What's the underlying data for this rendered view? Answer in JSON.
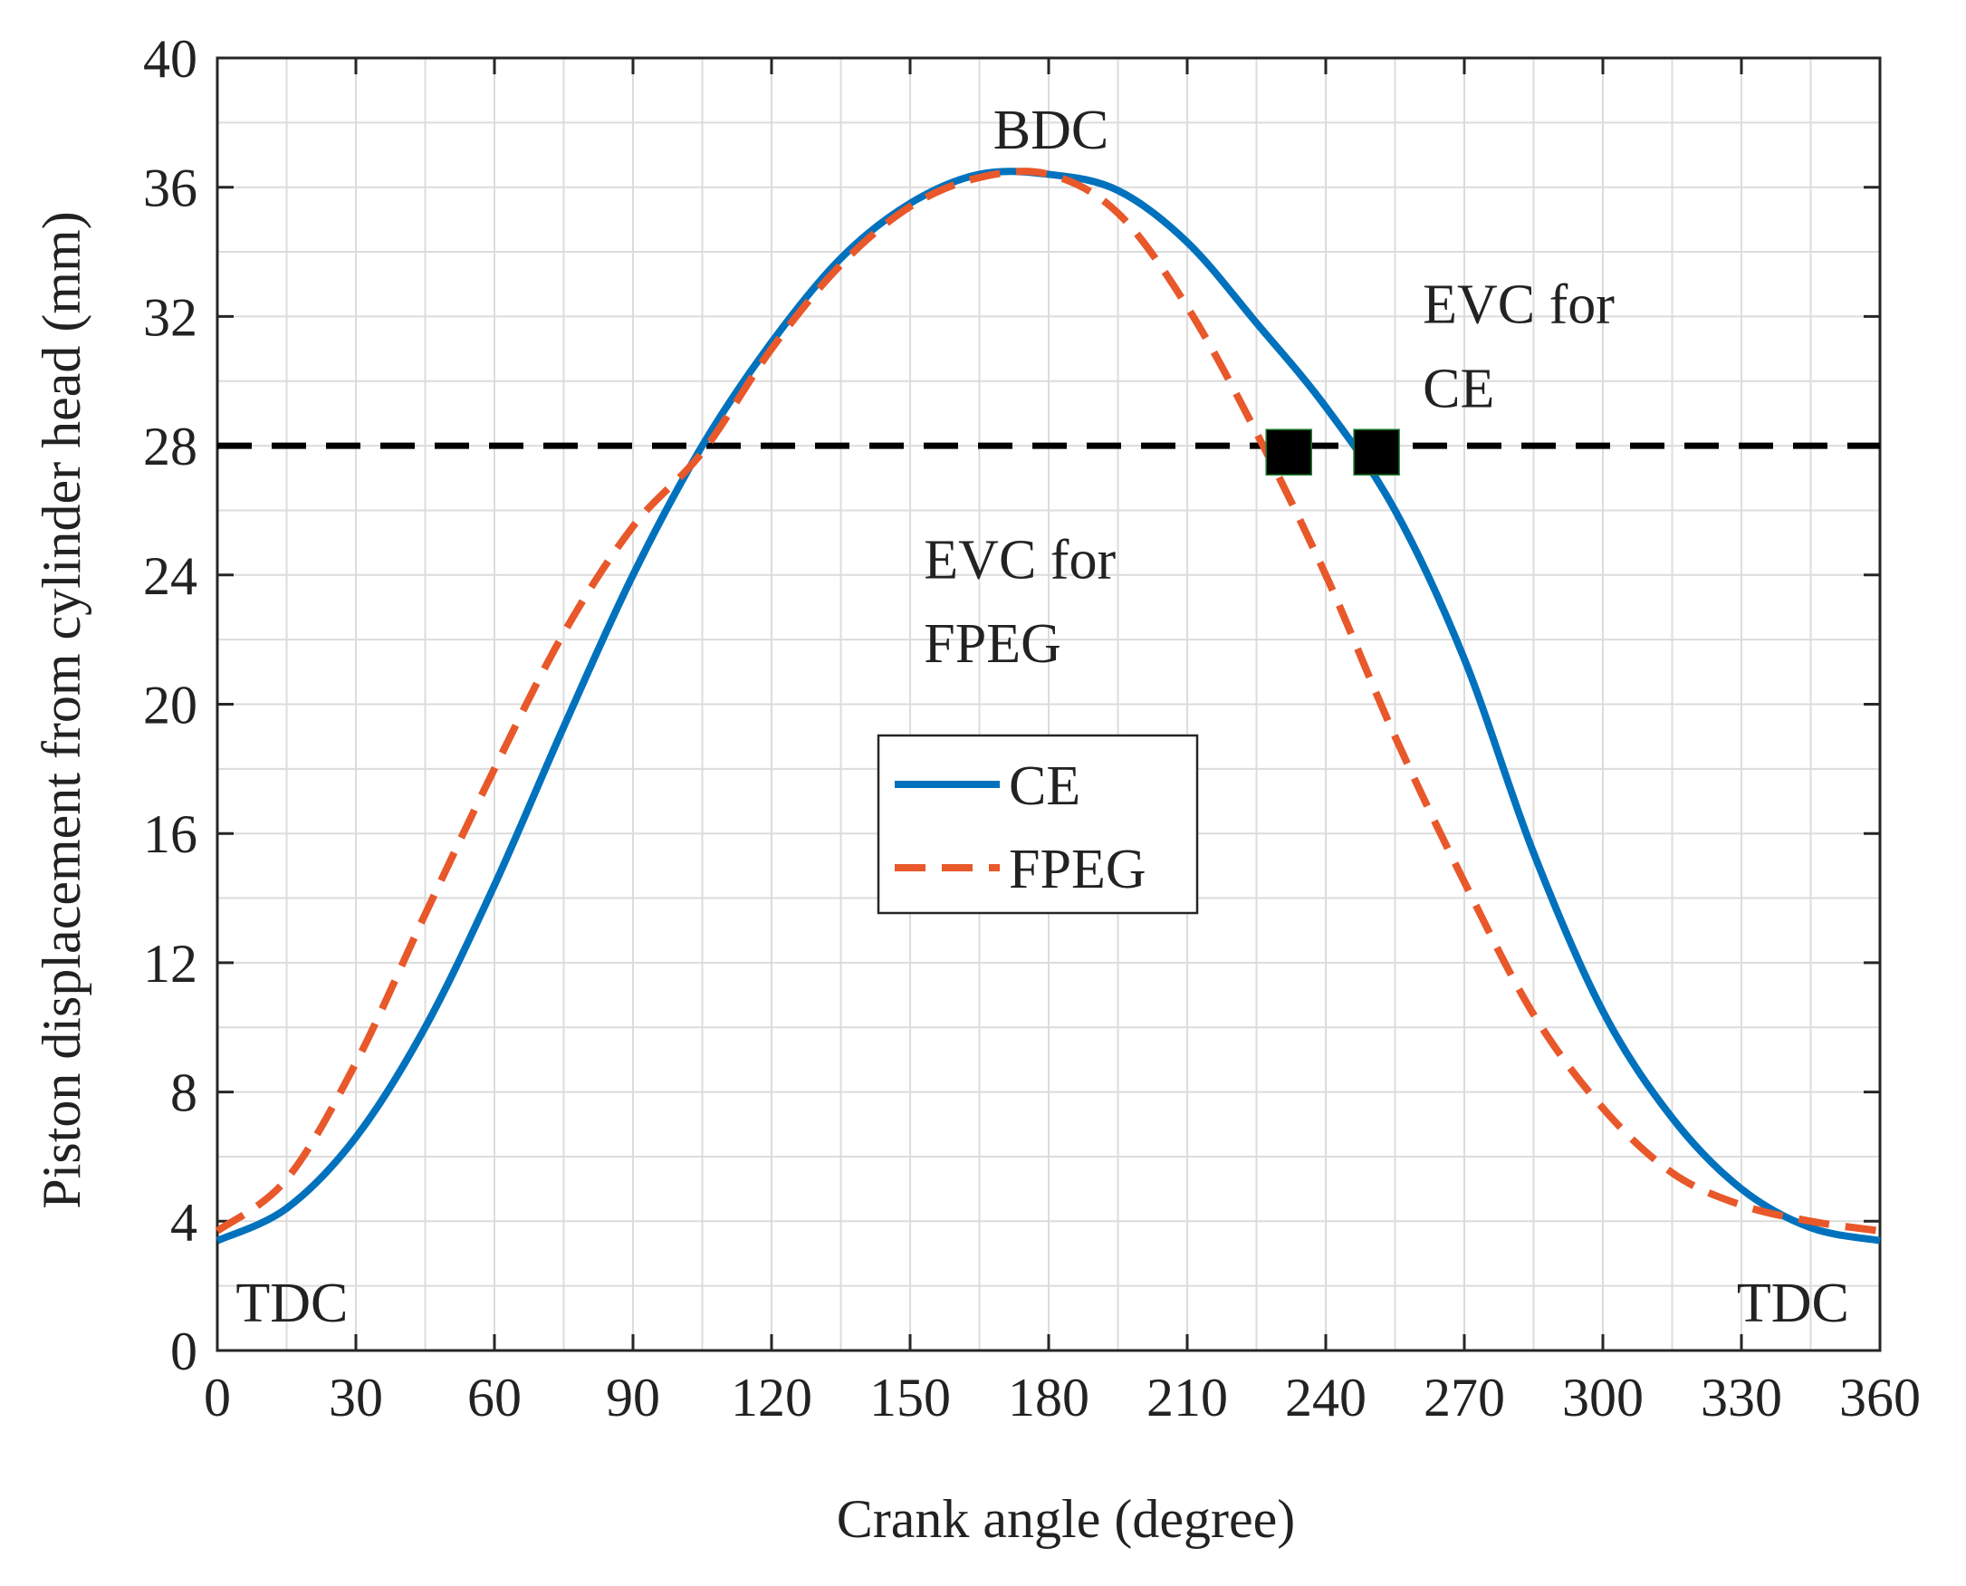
{
  "chart_data": {
    "type": "line",
    "title": "",
    "xlabel": "Crank angle (degree)",
    "ylabel": "Piston displacement from cylinder head (mm)",
    "xlim": [
      0,
      360
    ],
    "ylim": [
      0,
      40
    ],
    "xticks": [
      "0",
      "30",
      "60",
      "90",
      "120",
      "150",
      "180",
      "210",
      "240",
      "270",
      "300",
      "330",
      "360"
    ],
    "yticks": [
      "0",
      "4",
      "8",
      "12",
      "16",
      "20",
      "24",
      "28",
      "32",
      "36",
      "40"
    ],
    "x_minor_step": 15,
    "y_minor_step": 2,
    "grid": true,
    "legend_position": "center",
    "series": [
      {
        "name": "CE",
        "color": "#0072BD",
        "style": "solid",
        "x": [
          0,
          15,
          30,
          45,
          60,
          75,
          90,
          105,
          120,
          135,
          150,
          165,
          180,
          195,
          210,
          225,
          240,
          255,
          270,
          285,
          300,
          315,
          330,
          345,
          360
        ],
        "y": [
          3.4,
          4.4,
          6.6,
          10.0,
          14.4,
          19.3,
          24.0,
          28.0,
          31.2,
          33.8,
          35.5,
          36.4,
          36.4,
          35.9,
          34.3,
          31.8,
          29.2,
          26.0,
          21.4,
          15.4,
          10.5,
          7.2,
          5.0,
          3.8,
          3.4
        ]
      },
      {
        "name": "FPEG",
        "color": "#E8582A",
        "style": "dashed",
        "x": [
          0,
          15,
          30,
          45,
          60,
          75,
          90,
          105,
          120,
          135,
          150,
          165,
          180,
          195,
          210,
          225,
          240,
          255,
          270,
          285,
          300,
          315,
          330,
          345,
          360
        ],
        "y": [
          3.7,
          5.3,
          8.9,
          13.5,
          18.0,
          22.2,
          25.5,
          27.8,
          31.0,
          33.6,
          35.4,
          36.3,
          36.4,
          35.2,
          32.3,
          28.4,
          24.0,
          19.0,
          14.5,
          10.4,
          7.5,
          5.5,
          4.5,
          4.0,
          3.7
        ]
      }
    ],
    "reference_lines": [
      {
        "name": "EVC level",
        "y": 28,
        "color": "#000000",
        "style": "dashed"
      }
    ],
    "markers": [
      {
        "name": "EVC FPEG",
        "x": 232,
        "y": 27.8,
        "shape": "square",
        "color": "#000000"
      },
      {
        "name": "EVC CE",
        "x": 251,
        "y": 27.8,
        "shape": "square",
        "color": "#000000"
      }
    ],
    "annotations": [
      {
        "text": "BDC",
        "x": 168,
        "y": 37.2
      },
      {
        "text": "EVC for",
        "x": 261,
        "y": 31.8
      },
      {
        "text": "CE",
        "x": 261,
        "y": 29.2
      },
      {
        "text": "EVC for",
        "x": 153,
        "y": 23.9
      },
      {
        "text": "FPEG",
        "x": 153,
        "y": 21.3
      },
      {
        "text": "TDC",
        "x": 4,
        "y": 0.9
      },
      {
        "text": "TDC",
        "x": 329,
        "y": 0.9
      }
    ]
  }
}
